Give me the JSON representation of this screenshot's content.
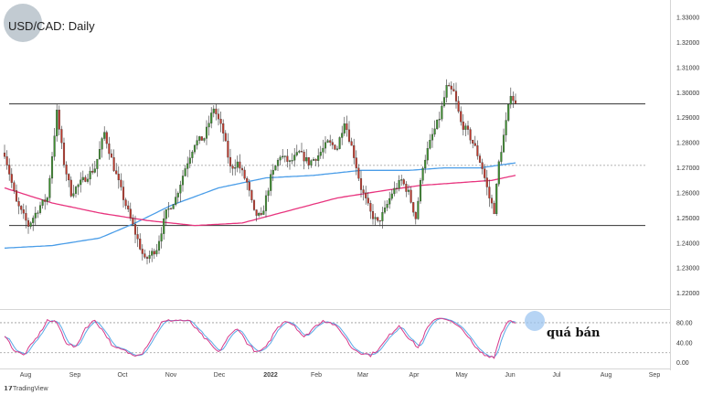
{
  "title": "USD/CAD: Daily",
  "annotation": "quá bán",
  "brand": "TradingView",
  "colors": {
    "bull": "#3d8f2f",
    "bear": "#c0392b",
    "ma_fast": "#e8347e",
    "ma_slow": "#4a9de8",
    "stoch_k": "#d63a8a",
    "stoch_d": "#5aa9e6",
    "level_line": "#333333",
    "highlight": "#9ec6f0"
  },
  "chart_data": [
    {
      "type": "candlestick",
      "title": "USD/CAD: Daily",
      "x_ticks": [
        "Aug",
        "Sep",
        "Oct",
        "Nov",
        "Dec",
        "2022",
        "Feb",
        "Mar",
        "Apr",
        "May",
        "Jun",
        "Jul",
        "Aug",
        "Sep"
      ],
      "y_ticks": [
        "1.33000",
        "1.32000",
        "1.31000",
        "1.30000",
        "1.29000",
        "1.28000",
        "1.27000",
        "1.26000",
        "1.25000",
        "1.24000",
        "1.23000",
        "1.22000"
      ],
      "ylim": [
        1.2155,
        1.3355
      ],
      "grid": false,
      "horizontal_levels": [
        1.2955,
        1.247
      ],
      "dashed_level": 1.271,
      "keypoints": [
        [
          0,
          1.276
        ],
        [
          5,
          1.256
        ],
        [
          10,
          1.247
        ],
        [
          15,
          1.255
        ],
        [
          18,
          1.258
        ],
        [
          22,
          1.292
        ],
        [
          25,
          1.272
        ],
        [
          28,
          1.26
        ],
        [
          33,
          1.265
        ],
        [
          38,
          1.27
        ],
        [
          42,
          1.284
        ],
        [
          46,
          1.27
        ],
        [
          50,
          1.258
        ],
        [
          55,
          1.244
        ],
        [
          59,
          1.233
        ],
        [
          64,
          1.238
        ],
        [
          68,
          1.252
        ],
        [
          72,
          1.258
        ],
        [
          76,
          1.27
        ],
        [
          80,
          1.28
        ],
        [
          84,
          1.282
        ],
        [
          88,
          1.294
        ],
        [
          92,
          1.284
        ],
        [
          95,
          1.27
        ],
        [
          98,
          1.272
        ],
        [
          102,
          1.264
        ],
        [
          105,
          1.252
        ],
        [
          108,
          1.25
        ],
        [
          112,
          1.266
        ],
        [
          116,
          1.275
        ],
        [
          120,
          1.272
        ],
        [
          124,
          1.276
        ],
        [
          128,
          1.272
        ],
        [
          132,
          1.275
        ],
        [
          136,
          1.28
        ],
        [
          140,
          1.278
        ],
        [
          143,
          1.289
        ],
        [
          147,
          1.275
        ],
        [
          150,
          1.262
        ],
        [
          154,
          1.252
        ],
        [
          157,
          1.248
        ],
        [
          160,
          1.253
        ],
        [
          163,
          1.26
        ],
        [
          167,
          1.265
        ],
        [
          170,
          1.26
        ],
        [
          173,
          1.25
        ],
        [
          176,
          1.271
        ],
        [
          180,
          1.283
        ],
        [
          183,
          1.29
        ],
        [
          186,
          1.302
        ],
        [
          189,
          1.3
        ],
        [
          192,
          1.288
        ],
        [
          195,
          1.284
        ],
        [
          198,
          1.278
        ],
        [
          201,
          1.27
        ],
        [
          204,
          1.258
        ],
        [
          206,
          1.253
        ],
        [
          208,
          1.272
        ],
        [
          211,
          1.288
        ],
        [
          213,
          1.3
        ],
        [
          215,
          1.295
        ]
      ],
      "ma_fast": [
        [
          0,
          1.262
        ],
        [
          20,
          1.256
        ],
        [
          40,
          1.252
        ],
        [
          60,
          1.249
        ],
        [
          80,
          1.247
        ],
        [
          100,
          1.248
        ],
        [
          120,
          1.253
        ],
        [
          140,
          1.258
        ],
        [
          160,
          1.261
        ],
        [
          175,
          1.263
        ],
        [
          190,
          1.264
        ],
        [
          205,
          1.265
        ],
        [
          215,
          1.267
        ]
      ],
      "ma_slow": [
        [
          0,
          1.238
        ],
        [
          20,
          1.239
        ],
        [
          40,
          1.242
        ],
        [
          55,
          1.248
        ],
        [
          70,
          1.255
        ],
        [
          90,
          1.262
        ],
        [
          110,
          1.266
        ],
        [
          130,
          1.267
        ],
        [
          150,
          1.269
        ],
        [
          170,
          1.269
        ],
        [
          185,
          1.27
        ],
        [
          200,
          1.27
        ],
        [
          215,
          1.272
        ]
      ]
    },
    {
      "type": "line",
      "y_ticks": [
        "80.00",
        "40.00",
        "0.00"
      ],
      "ylim": [
        -6,
        100
      ],
      "overbought": 80,
      "oversold": 20,
      "k_keypoints": [
        [
          0,
          55
        ],
        [
          4,
          25
        ],
        [
          8,
          15
        ],
        [
          12,
          40
        ],
        [
          15,
          60
        ],
        [
          18,
          85
        ],
        [
          22,
          80
        ],
        [
          26,
          40
        ],
        [
          30,
          30
        ],
        [
          34,
          70
        ],
        [
          38,
          85
        ],
        [
          42,
          60
        ],
        [
          46,
          30
        ],
        [
          50,
          25
        ],
        [
          54,
          15
        ],
        [
          58,
          20
        ],
        [
          62,
          50
        ],
        [
          66,
          80
        ],
        [
          70,
          85
        ],
        [
          74,
          85
        ],
        [
          78,
          82
        ],
        [
          82,
          60
        ],
        [
          86,
          40
        ],
        [
          90,
          20
        ],
        [
          94,
          50
        ],
        [
          98,
          70
        ],
        [
          102,
          40
        ],
        [
          106,
          20
        ],
        [
          110,
          30
        ],
        [
          114,
          65
        ],
        [
          118,
          85
        ],
        [
          122,
          75
        ],
        [
          126,
          50
        ],
        [
          130,
          70
        ],
        [
          134,
          85
        ],
        [
          138,
          78
        ],
        [
          142,
          60
        ],
        [
          146,
          30
        ],
        [
          150,
          20
        ],
        [
          154,
          15
        ],
        [
          158,
          30
        ],
        [
          162,
          55
        ],
        [
          166,
          75
        ],
        [
          170,
          50
        ],
        [
          174,
          30
        ],
        [
          178,
          70
        ],
        [
          182,
          90
        ],
        [
          186,
          88
        ],
        [
          190,
          75
        ],
        [
          194,
          60
        ],
        [
          198,
          30
        ],
        [
          202,
          15
        ],
        [
          206,
          12
        ],
        [
          209,
          60
        ],
        [
          212,
          85
        ],
        [
          215,
          82
        ]
      ]
    }
  ]
}
